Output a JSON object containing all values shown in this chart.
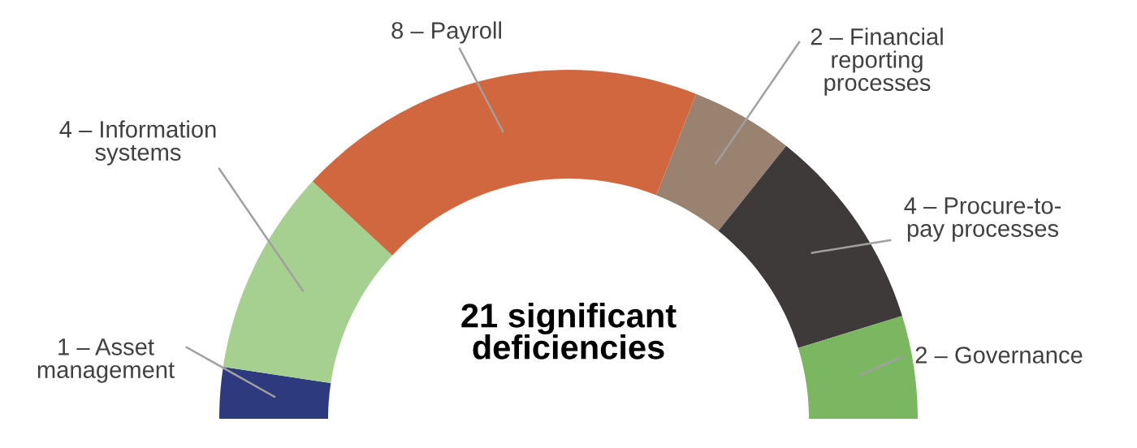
{
  "chart_data": {
    "type": "donut",
    "title": "21 significant\ndeficiencies",
    "categories": [
      "Asset\nmanagement",
      "Information\nsystems",
      "Payroll",
      "Financial\nreporting\nprocesses",
      "Procure-to-\npay processes",
      "Governance"
    ],
    "values": [
      1,
      4,
      8,
      2,
      4,
      2
    ],
    "value_labels": [
      "1 –",
      "4 –",
      "8 –",
      "2 –",
      "4 –",
      "2 –"
    ],
    "colors": [
      "#2e3a7e",
      "#a6d08f",
      "#d0673f",
      "#9a8271",
      "#3e3a39",
      "#7bb661"
    ],
    "legend": false
  }
}
